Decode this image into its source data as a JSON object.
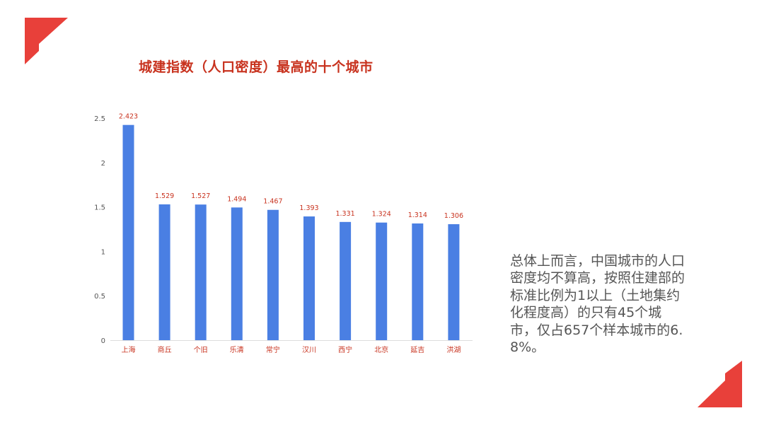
{
  "title": "城建指数（人口密度）最高的十个城市",
  "description": "总体上而言，中国城市的人口密度均不算高，按照住建部的标准比例为1以上（土地集约化程度高）的只有45个城市，仅占657个样本城市的6.8%。",
  "colors": {
    "accent": "#e8403a",
    "bar": "#4a7fe3",
    "title": "#c8321e",
    "label": "#c8321e",
    "axis_text": "#555555",
    "body_text": "#555555"
  },
  "chart_data": {
    "type": "bar",
    "title": "城建指数（人口密度）最高的十个城市",
    "xlabel": "",
    "ylabel": "",
    "categories": [
      "上海",
      "商丘",
      "个旧",
      "乐清",
      "常宁",
      "汉川",
      "西宁",
      "北京",
      "延吉",
      "洪湖"
    ],
    "values": [
      2.423,
      1.529,
      1.527,
      1.494,
      1.467,
      1.393,
      1.331,
      1.324,
      1.314,
      1.306
    ],
    "value_labels": [
      "2.423",
      "1.529",
      "1.527",
      "1.494",
      "1.467",
      "1.393",
      "1.331",
      "1.324",
      "1.314",
      "1.306"
    ],
    "ylim": [
      0,
      2.5
    ],
    "yticks": [
      0,
      0.5,
      1,
      1.5,
      2,
      2.5
    ],
    "ytick_labels": [
      "0",
      "0.5",
      "1",
      "1.5",
      "2",
      "2.5"
    ],
    "grid": false,
    "legend": "none"
  }
}
